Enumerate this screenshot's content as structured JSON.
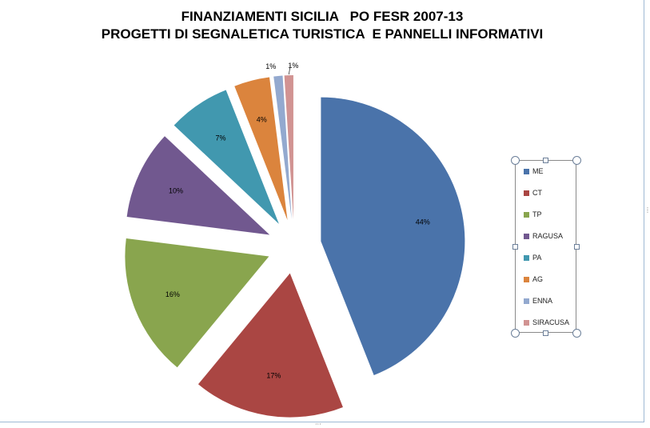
{
  "chart_data": {
    "type": "pie",
    "title_line1": "FINANZIAMENTI SICILIA   PO FESR 2007-13",
    "title_line2": "PROGETTI DI SEGNALETICA TURISTICA  E PANNELLI INFORMATIVI",
    "slices": [
      {
        "name": "ME",
        "value": 44,
        "label": "44%",
        "color": "#4a73aa"
      },
      {
        "name": "CT",
        "value": 17,
        "label": "17%",
        "color": "#aa4643"
      },
      {
        "name": "TP",
        "value": 16,
        "label": "16%",
        "color": "#89a54e"
      },
      {
        "name": "RAGUSA",
        "value": 10,
        "label": "10%",
        "color": "#71588f"
      },
      {
        "name": "PA",
        "value": 7,
        "label": "7%",
        "color": "#4198af"
      },
      {
        "name": "AG",
        "value": 4,
        "label": "4%",
        "color": "#db843d"
      },
      {
        "name": "ENNA",
        "value": 1,
        "label": "1%",
        "color": "#93a9cf"
      },
      {
        "name": "SIRACUSA",
        "value": 1,
        "label": "1%",
        "color": "#d19392"
      }
    ],
    "legend_position": "right",
    "exploded": true
  }
}
